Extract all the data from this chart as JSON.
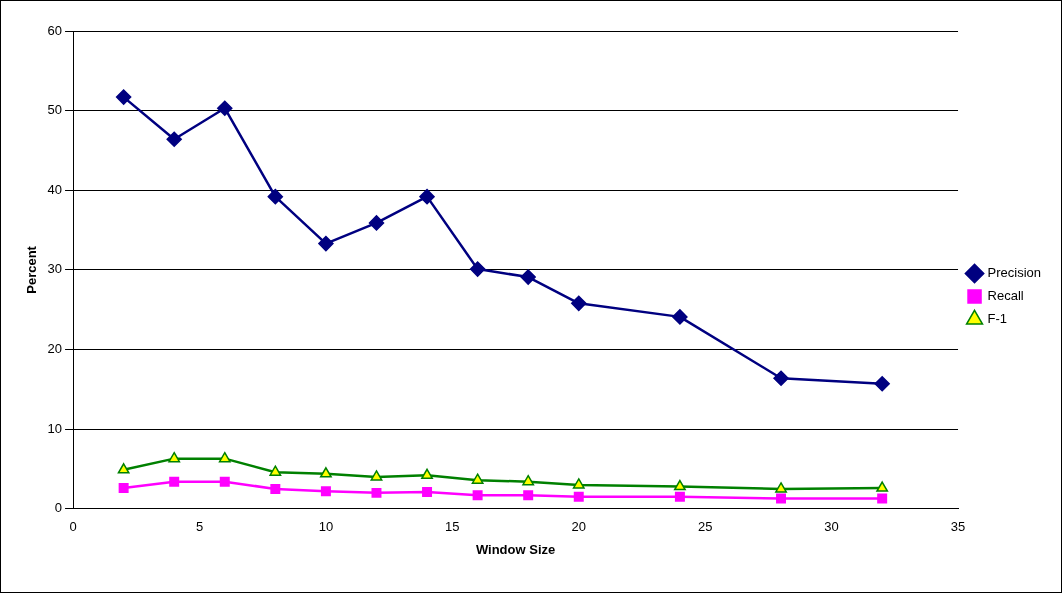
{
  "chart_data": {
    "type": "line",
    "xlabel": "Window Size",
    "ylabel": "Percent",
    "x": [
      2,
      4,
      6,
      8,
      10,
      12,
      14,
      16,
      18,
      20,
      24,
      28,
      32
    ],
    "xlim": [
      0,
      35
    ],
    "xticks": [
      0,
      5,
      10,
      15,
      20,
      25,
      30,
      35
    ],
    "ylim": [
      0,
      60
    ],
    "yticks": [
      0,
      10,
      20,
      30,
      40,
      50,
      60
    ],
    "grid": "y",
    "legend": "right",
    "series": [
      {
        "name": "Precision",
        "color": "#000080",
        "marker": "diamond",
        "values": [
          51.7,
          46.4,
          50.3,
          39.2,
          33.3,
          35.9,
          39.2,
          30.1,
          29.1,
          25.8,
          24.1,
          16.4,
          15.7
        ]
      },
      {
        "name": "Recall",
        "color": "#ff00ff",
        "marker": "square",
        "values": [
          2.6,
          3.4,
          3.4,
          2.5,
          2.2,
          2.0,
          2.1,
          1.7,
          1.7,
          1.5,
          1.5,
          1.3,
          1.3
        ]
      },
      {
        "name": "F-1",
        "color": "#008000",
        "marker": "triangle",
        "values": [
          4.9,
          6.3,
          6.3,
          4.6,
          4.4,
          4.0,
          4.2,
          3.6,
          3.4,
          3.0,
          2.8,
          2.5,
          2.6
        ]
      }
    ]
  }
}
